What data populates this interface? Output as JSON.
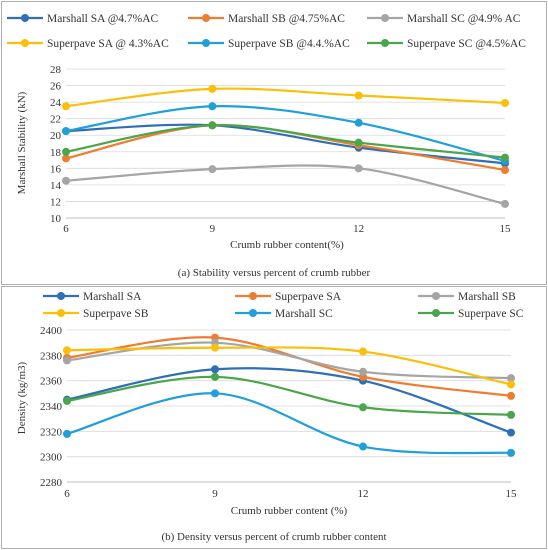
{
  "chart_data": [
    {
      "type": "line",
      "caption": "(a) Stability versus percent of crumb rubber",
      "xlabel": "Crumb rubber content(%)",
      "ylabel": "Marshall Stability (kN)",
      "x": [
        6,
        9,
        12,
        15
      ],
      "ylim": [
        10,
        28
      ],
      "yticks": [
        10,
        12,
        14,
        16,
        18,
        20,
        22,
        24,
        26,
        28
      ],
      "grid": true,
      "legend": "top",
      "series": [
        {
          "name": "Marshall SA @4.7%AC",
          "color": "#2e6fb6",
          "values": [
            20.5,
            21.2,
            18.5,
            16.6
          ]
        },
        {
          "name": "Marshall SB @4.75%AC",
          "color": "#ee7d31",
          "values": [
            17.2,
            21.2,
            18.8,
            15.8
          ]
        },
        {
          "name": "Marshall SC @4.9% AC",
          "color": "#a5a5a5",
          "values": [
            14.5,
            15.9,
            16.0,
            11.7
          ]
        },
        {
          "name": "Superpave SA @ 4.3%AC",
          "color": "#fbbf08",
          "values": [
            23.5,
            25.6,
            24.8,
            23.9
          ]
        },
        {
          "name": "Superpave SB @4.4.%AC",
          "color": "#209fdb",
          "values": [
            20.5,
            23.5,
            21.5,
            16.9
          ]
        },
        {
          "name": "Superpave SC @4.5%AC",
          "color": "#4aa64a",
          "values": [
            18.0,
            21.2,
            19.1,
            17.3
          ]
        }
      ]
    },
    {
      "type": "line",
      "caption": "(b) Density versus percent of crumb rubber content",
      "xlabel": "Crumb rubber content (%)",
      "ylabel": "Density (kg/m3)",
      "x": [
        6,
        9,
        12,
        15
      ],
      "ylim": [
        2280,
        2400
      ],
      "yticks": [
        2280,
        2300,
        2320,
        2340,
        2360,
        2380,
        2400
      ],
      "grid": true,
      "legend": "top",
      "series": [
        {
          "name": "Marshall SA",
          "color": "#2e6fb6",
          "values": [
            2345,
            2369,
            2360,
            2319
          ]
        },
        {
          "name": "Superpave SA",
          "color": "#ee7d31",
          "values": [
            2378,
            2394,
            2363,
            2348
          ]
        },
        {
          "name": "Marshall SB",
          "color": "#a5a5a5",
          "values": [
            2376,
            2390,
            2367,
            2362
          ]
        },
        {
          "name": "Superpave SB",
          "color": "#fbbf08",
          "values": [
            2384,
            2386,
            2383,
            2357
          ]
        },
        {
          "name": "Marshall SC",
          "color": "#209fdb",
          "values": [
            2318,
            2350,
            2308,
            2303
          ]
        },
        {
          "name": "Superpave SC",
          "color": "#4aa64a",
          "values": [
            2344,
            2363,
            2339,
            2333
          ]
        }
      ]
    }
  ]
}
